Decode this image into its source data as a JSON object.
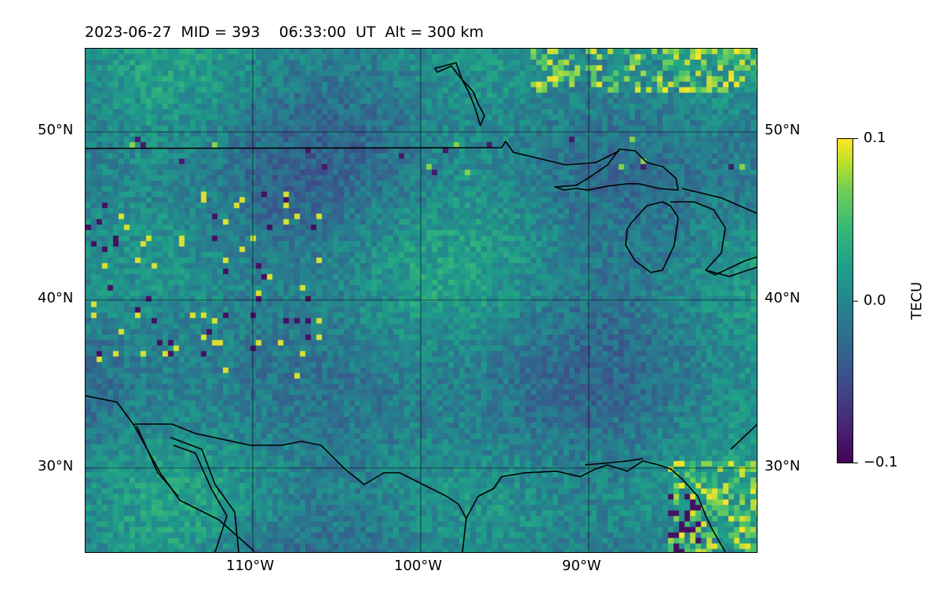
{
  "title": "2023-06-27  MID = 393    06:33:00  UT  Alt = 300 km",
  "map": {
    "lat_labels": [
      "50°N",
      "40°N",
      "30°N"
    ],
    "lon_labels": [
      "110°W",
      "100°W",
      "90°W"
    ],
    "lat_range": [
      25,
      55
    ],
    "lon_range": [
      -120,
      -80
    ],
    "gridlines": true,
    "colormap": "viridis"
  },
  "colorbar": {
    "label": "TECU",
    "ticks": [
      "0.1",
      "0.0",
      "−0.1"
    ],
    "vmin": -0.1,
    "vmax": 0.1
  },
  "colors": {
    "coastline": "#000000",
    "grid": "#000000"
  }
}
